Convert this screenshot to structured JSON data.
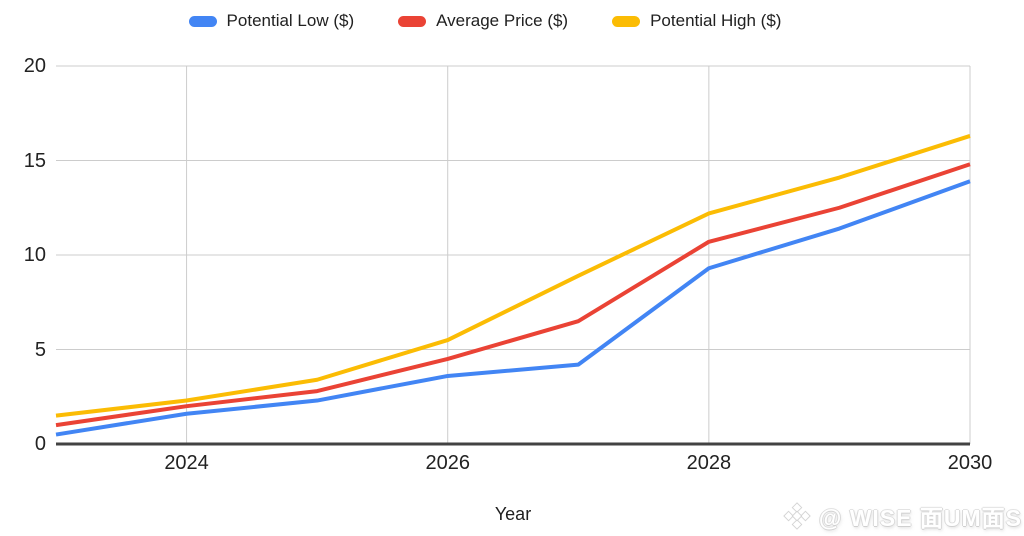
{
  "chart_data": {
    "type": "line",
    "title": "",
    "xlabel": "Year",
    "ylabel": "",
    "x": [
      2023,
      2024,
      2025,
      2026,
      2027,
      2028,
      2029,
      2030
    ],
    "series": [
      {
        "name": "Potential Low ($)",
        "color": "#4285F4",
        "values": [
          0.5,
          1.6,
          2.3,
          3.6,
          4.2,
          9.3,
          11.4,
          13.9
        ]
      },
      {
        "name": "Average Price ($)",
        "color": "#EA4335",
        "values": [
          1.0,
          2.0,
          2.8,
          4.5,
          6.5,
          10.7,
          12.5,
          14.8
        ]
      },
      {
        "name": "Potential High ($)",
        "color": "#FBBC04",
        "values": [
          1.5,
          2.3,
          3.4,
          5.5,
          8.9,
          12.2,
          14.1,
          16.3
        ]
      }
    ],
    "ylim": [
      0,
      20
    ],
    "y_ticks": [
      0,
      5,
      10,
      15,
      20
    ],
    "y_tick_labels": [
      "0",
      "5",
      "10",
      "15",
      "20"
    ],
    "x_tick_values": [
      2024,
      2026,
      2028,
      2030
    ],
    "x_tick_labels": [
      "2024",
      "2026",
      "2028",
      "2030"
    ],
    "grid": true,
    "legend_position": "top",
    "gridline_color": "#cccccc",
    "baseline_color": "#424242",
    "tick_label_color": "#222222"
  },
  "watermark": {
    "icon": "binance-diamond-icon",
    "text": "@ WISE 面UM面S"
  }
}
